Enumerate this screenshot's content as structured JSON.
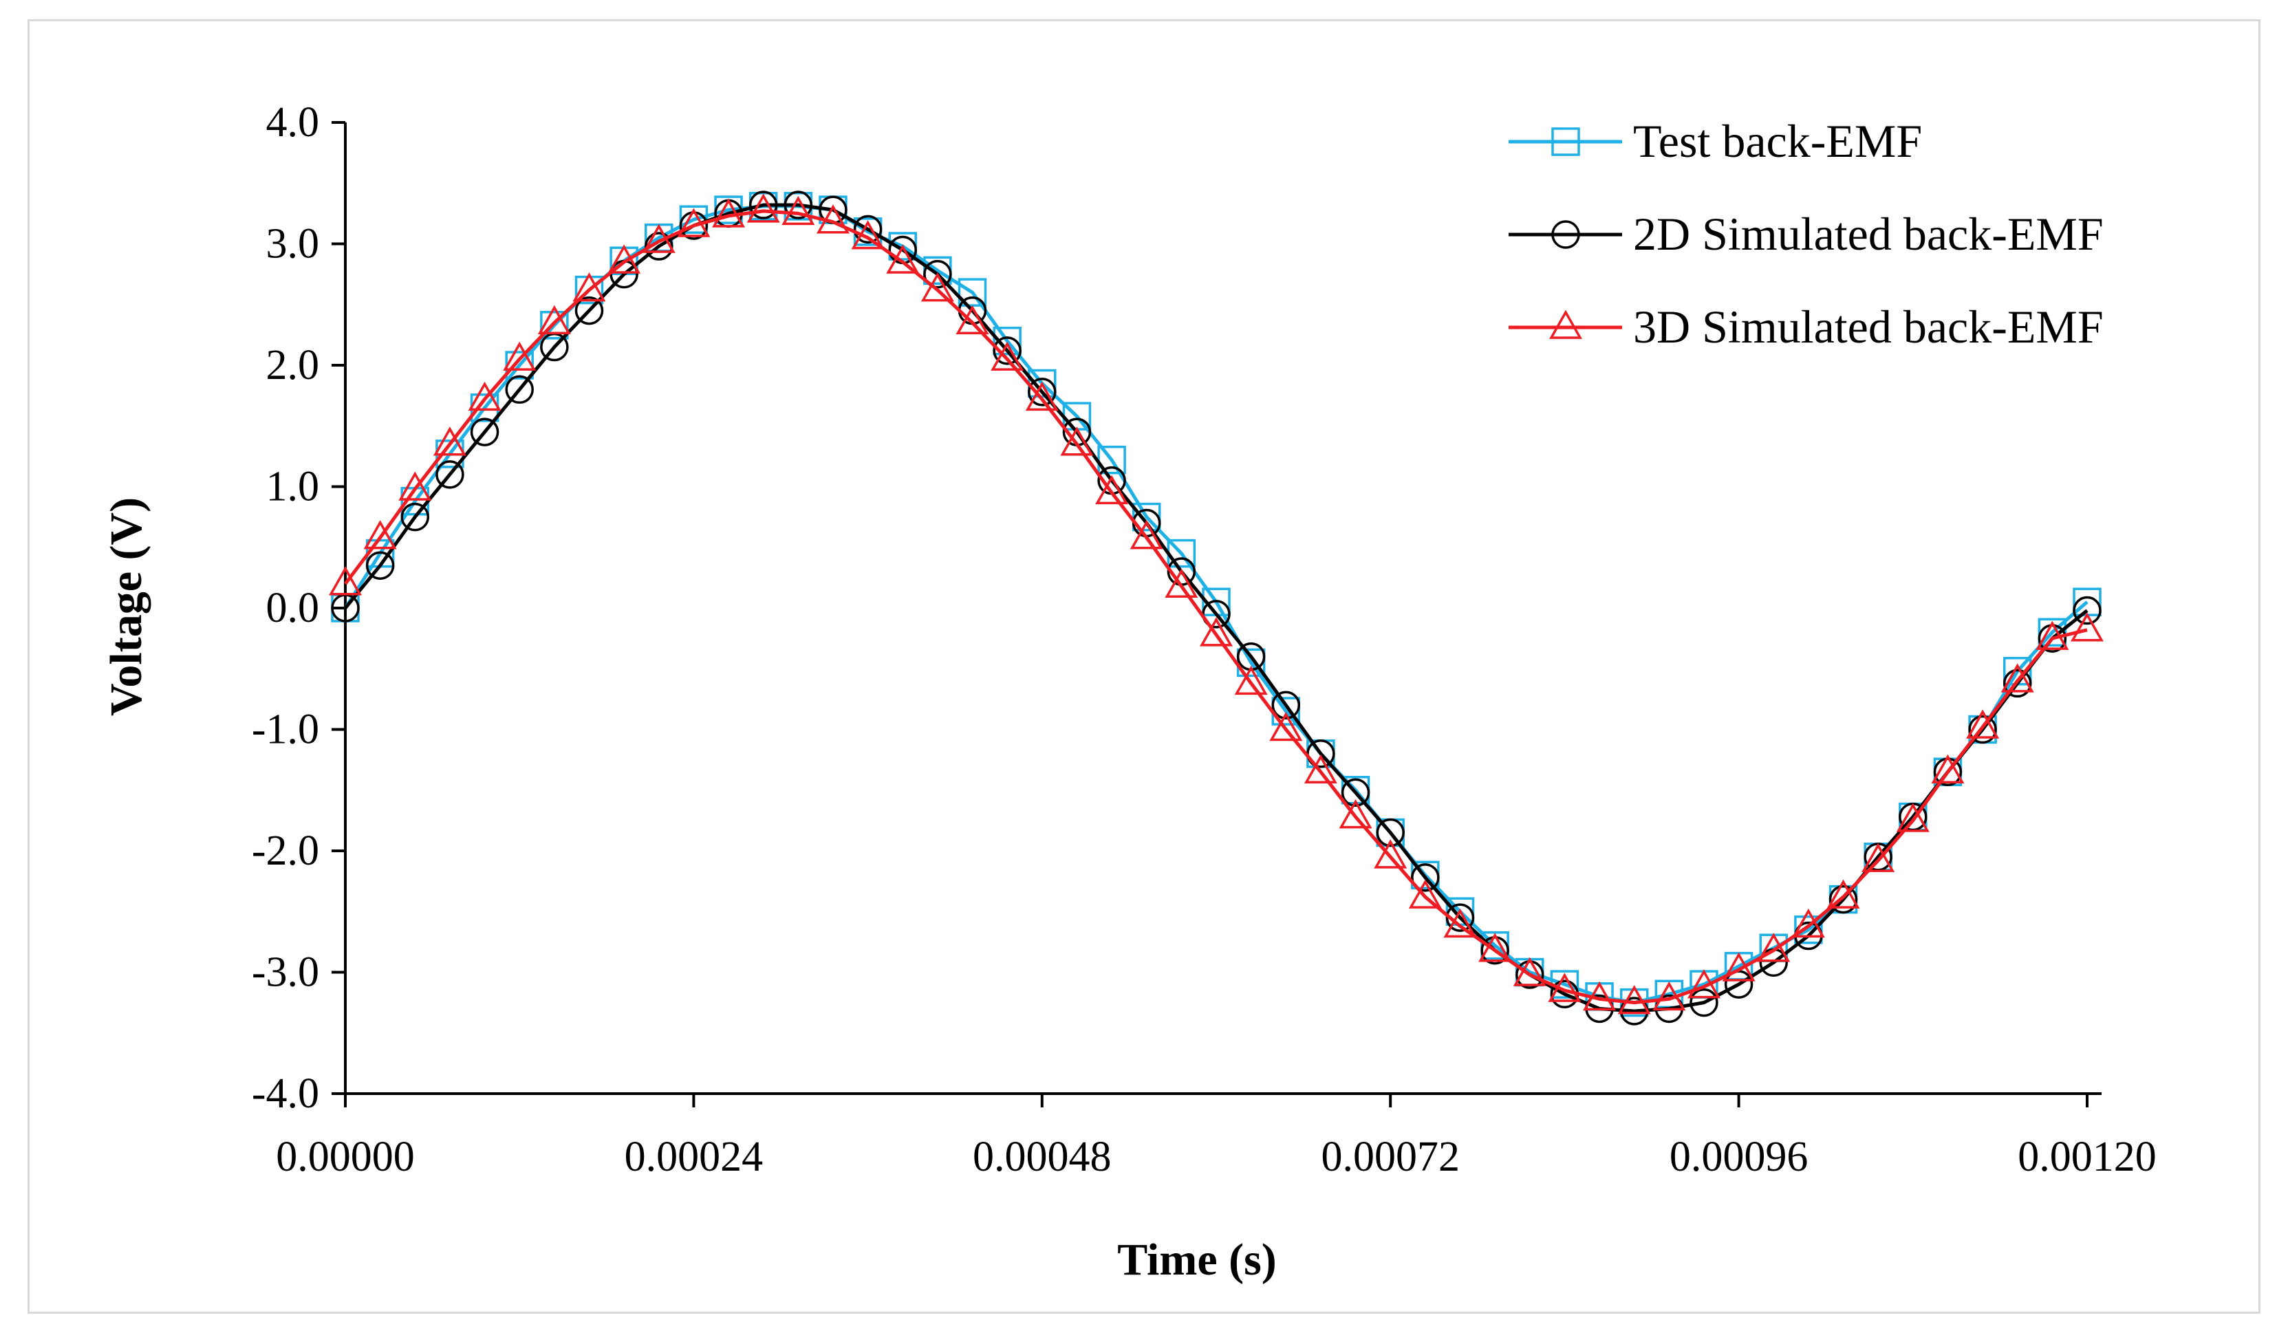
{
  "chart_data": {
    "type": "line",
    "title": "",
    "xlabel": "Time (s)",
    "ylabel": "Voltage (V)",
    "xlim": [
      0,
      0.0012
    ],
    "ylim": [
      -4.0,
      4.0
    ],
    "x_ticks": [
      "0.00000",
      "0.00024",
      "0.00048",
      "0.00072",
      "0.00096",
      "0.00120"
    ],
    "y_ticks": [
      "4.0",
      "3.0",
      "2.0",
      "1.0",
      "0.0",
      "-1.0",
      "-2.0",
      "-3.0",
      "-4.0"
    ],
    "grid": false,
    "legend_position": "top-right",
    "x": [
      0.0,
      2.4e-05,
      4.8e-05,
      7.2e-05,
      9.6e-05,
      0.00012,
      0.000144,
      0.000168,
      0.000192,
      0.000216,
      0.00024,
      0.000264,
      0.000288,
      0.000312,
      0.000336,
      0.00036,
      0.000384,
      0.000408,
      0.000432,
      0.000456,
      0.00048,
      0.000504,
      0.000528,
      0.000552,
      0.000576,
      0.0006,
      0.000624,
      0.000648,
      0.000672,
      0.000696,
      0.00072,
      0.000744,
      0.000768,
      0.000792,
      0.000816,
      0.00084,
      0.000864,
      0.000888,
      0.000912,
      0.000936,
      0.00096,
      0.000984,
      0.001008,
      0.001032,
      0.001056,
      0.00108,
      0.001104,
      0.001128,
      0.001152,
      0.001176,
      0.0012
    ],
    "series": [
      {
        "name": "Test back-EMF",
        "color": "#1fb0e6",
        "marker": "square",
        "values": [
          0.0,
          0.45,
          0.88,
          1.27,
          1.65,
          2.0,
          2.33,
          2.62,
          2.86,
          3.05,
          3.2,
          3.28,
          3.31,
          3.31,
          3.28,
          3.1,
          2.98,
          2.78,
          2.6,
          2.2,
          1.85,
          1.58,
          1.22,
          0.75,
          0.45,
          0.05,
          -0.45,
          -0.85,
          -1.2,
          -1.5,
          -1.85,
          -2.2,
          -2.5,
          -2.78,
          -3.0,
          -3.1,
          -3.2,
          -3.25,
          -3.18,
          -3.1,
          -2.95,
          -2.8,
          -2.65,
          -2.4,
          -2.05,
          -1.72,
          -1.35,
          -1.0,
          -0.52,
          -0.2,
          0.05
        ]
      },
      {
        "name": "2D Simulated back-EMF",
        "color": "#000000",
        "marker": "circle",
        "values": [
          0.0,
          0.35,
          0.75,
          1.1,
          1.45,
          1.8,
          2.15,
          2.45,
          2.75,
          2.98,
          3.15,
          3.25,
          3.32,
          3.32,
          3.28,
          3.12,
          2.95,
          2.75,
          2.45,
          2.12,
          1.78,
          1.45,
          1.05,
          0.7,
          0.3,
          -0.05,
          -0.4,
          -0.8,
          -1.2,
          -1.52,
          -1.85,
          -2.22,
          -2.55,
          -2.82,
          -3.02,
          -3.18,
          -3.3,
          -3.32,
          -3.3,
          -3.25,
          -3.1,
          -2.92,
          -2.7,
          -2.4,
          -2.05,
          -1.72,
          -1.35,
          -1.0,
          -0.62,
          -0.25,
          -0.02
        ]
      },
      {
        "name": "3D Simulated back-EMF",
        "color": "#ee1c23",
        "marker": "triangle",
        "values": [
          0.2,
          0.58,
          0.98,
          1.35,
          1.72,
          2.05,
          2.35,
          2.62,
          2.85,
          3.02,
          3.15,
          3.23,
          3.27,
          3.25,
          3.18,
          3.05,
          2.85,
          2.62,
          2.35,
          2.05,
          1.72,
          1.35,
          0.95,
          0.58,
          0.18,
          -0.22,
          -0.62,
          -1.0,
          -1.35,
          -1.72,
          -2.05,
          -2.38,
          -2.62,
          -2.82,
          -3.02,
          -3.15,
          -3.22,
          -3.25,
          -3.22,
          -3.12,
          -2.98,
          -2.82,
          -2.62,
          -2.38,
          -2.08,
          -1.75,
          -1.35,
          -0.98,
          -0.6,
          -0.25,
          -0.18
        ]
      }
    ]
  }
}
